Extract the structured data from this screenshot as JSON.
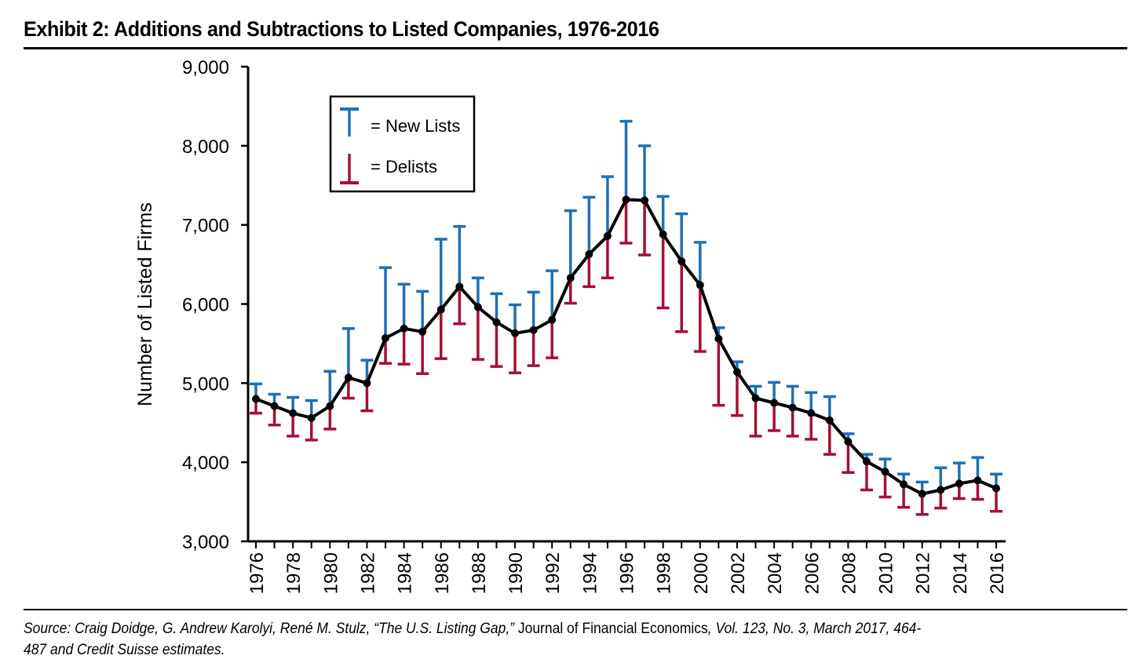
{
  "title": "Exhibit 2: Additions and Subtractions to Listed Companies, 1976-2016",
  "source": {
    "part1": "Source: Craig Doidge, G. Andrew Karolyi, René M. Stulz, “The U.S. Listing Gap,”",
    "part2": " Journal of Financial Economics",
    "part3": ", Vol. 123, No. 3, March 2017, 464-",
    "line2": "487 and Credit Suisse estimates."
  },
  "colors": {
    "new_lists": "#1f6fb5",
    "delists": "#a50f33",
    "line": "#000000"
  },
  "chart_data": {
    "type": "line",
    "title": "Exhibit 2: Additions and Subtractions to Listed Companies, 1976-2016",
    "xlabel": "",
    "ylabel": "Number of Listed Firms",
    "ylim": [
      3000,
      9000
    ],
    "yticks": [
      3000,
      4000,
      5000,
      6000,
      7000,
      8000,
      9000
    ],
    "ytick_labels": [
      "3,000",
      "4,000",
      "5,000",
      "6,000",
      "7,000",
      "8,000",
      "9,000"
    ],
    "xlim": [
      1976,
      2016
    ],
    "xtick_labels": [
      "1976",
      "1978",
      "1980",
      "1982",
      "1984",
      "1986",
      "1988",
      "1990",
      "1992",
      "1994",
      "1996",
      "1998",
      "2000",
      "2002",
      "2004",
      "2006",
      "2008",
      "2010",
      "2012",
      "2014",
      "2016"
    ],
    "grid": false,
    "legend": {
      "position": "top-left",
      "entries": [
        {
          "label": "= New Lists",
          "symbol": "T",
          "series": "new_lists"
        },
        {
          "label": "= Delists",
          "symbol": "⊥",
          "series": "delists"
        }
      ]
    },
    "x": [
      1976,
      1977,
      1978,
      1979,
      1980,
      1981,
      1982,
      1983,
      1984,
      1985,
      1986,
      1987,
      1988,
      1989,
      1990,
      1991,
      1992,
      1993,
      1994,
      1995,
      1996,
      1997,
      1998,
      1999,
      2000,
      2001,
      2002,
      2003,
      2004,
      2005,
      2006,
      2007,
      2008,
      2009,
      2010,
      2011,
      2012,
      2013,
      2014,
      2015,
      2016
    ],
    "series": [
      {
        "name": "Number of Listed Firms",
        "values": [
          4800,
          4710,
          4620,
          4560,
          4710,
          5070,
          5000,
          5570,
          5690,
          5650,
          5930,
          6220,
          5960,
          5770,
          5630,
          5670,
          5800,
          6330,
          6630,
          6860,
          7320,
          7310,
          6880,
          6540,
          6240,
          5560,
          5140,
          4810,
          4750,
          4690,
          4620,
          4530,
          4260,
          4010,
          3880,
          3720,
          3600,
          3650,
          3730,
          3770,
          3670
        ]
      },
      {
        "name": "New Lists (top of bar)",
        "values": [
          4990,
          4860,
          4820,
          4780,
          5150,
          5690,
          5290,
          6460,
          6250,
          6160,
          6820,
          6980,
          6330,
          6130,
          5990,
          6150,
          6420,
          7180,
          7350,
          7610,
          8310,
          8000,
          7360,
          7140,
          6780,
          5700,
          5270,
          4960,
          5010,
          4960,
          4880,
          4830,
          4360,
          4100,
          4040,
          3850,
          3750,
          3930,
          3990,
          4060,
          3850
        ]
      },
      {
        "name": "Delists (bottom of bar)",
        "values": [
          4620,
          4470,
          4330,
          4280,
          4420,
          4810,
          4650,
          5250,
          5240,
          5120,
          5310,
          5750,
          5300,
          5210,
          5130,
          5220,
          5320,
          6010,
          6220,
          6330,
          6770,
          6620,
          5950,
          5650,
          5400,
          4720,
          4590,
          4330,
          4400,
          4330,
          4290,
          4100,
          3870,
          3650,
          3560,
          3430,
          3340,
          3420,
          3540,
          3530,
          3380
        ]
      }
    ]
  }
}
